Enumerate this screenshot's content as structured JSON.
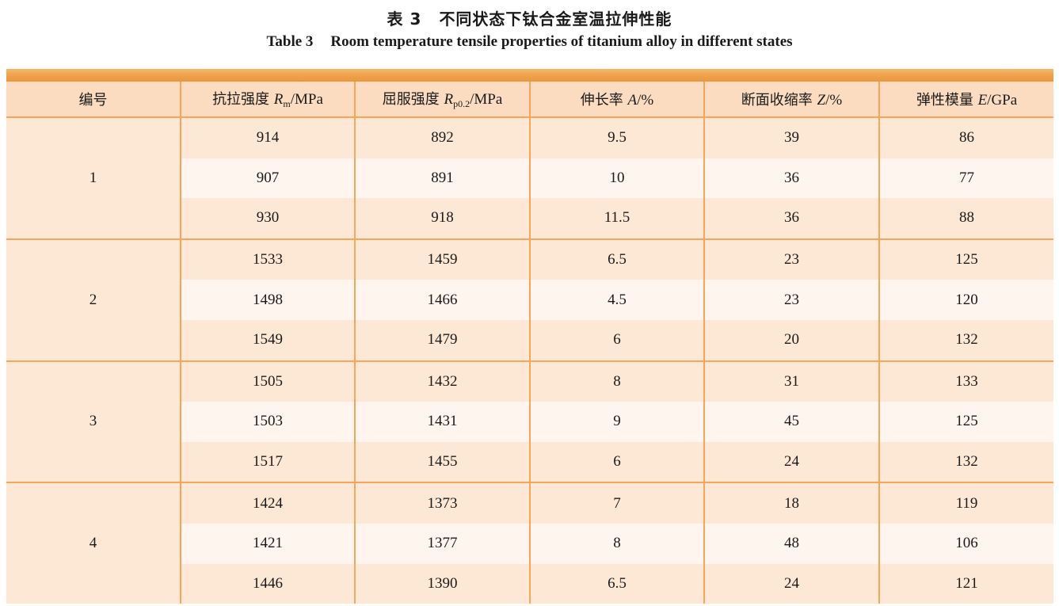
{
  "caption": {
    "cn_number": "表 3",
    "cn_title": "不同状态下钛合金室温拉伸性能",
    "en_number": "Table 3",
    "en_title": "Room temperature tensile properties of titanium alloy in different states"
  },
  "headers": {
    "id": "编号",
    "rm_cn": "抗拉强度 ",
    "rm_var": "R",
    "rm_sub": "m",
    "rm_unit": "/MPa",
    "rp_cn": "屈服强度 ",
    "rp_var": "R",
    "rp_sub": "p0.2",
    "rp_unit": "/MPa",
    "a_cn": "伸长率 ",
    "a_var": "A",
    "a_unit": "/%",
    "z_cn": "断面收缩率 ",
    "z_var": "Z",
    "z_unit": "/%",
    "e_cn": "弹性模量 ",
    "e_var": "E",
    "e_unit": "/GPa"
  },
  "groups": [
    {
      "id": "1",
      "rows": [
        [
          "914",
          "892",
          "9.5",
          "39",
          "86"
        ],
        [
          "907",
          "891",
          "10",
          "36",
          "77"
        ],
        [
          "930",
          "918",
          "11.5",
          "36",
          "88"
        ]
      ]
    },
    {
      "id": "2",
      "rows": [
        [
          "1533",
          "1459",
          "6.5",
          "23",
          "125"
        ],
        [
          "1498",
          "1466",
          "4.5",
          "23",
          "120"
        ],
        [
          "1549",
          "1479",
          "6",
          "20",
          "132"
        ]
      ]
    },
    {
      "id": "3",
      "rows": [
        [
          "1505",
          "1432",
          "8",
          "31",
          "133"
        ],
        [
          "1503",
          "1431",
          "9",
          "45",
          "125"
        ],
        [
          "1517",
          "1455",
          "6",
          "24",
          "132"
        ]
      ]
    },
    {
      "id": "4",
      "rows": [
        [
          "1424",
          "1373",
          "7",
          "18",
          "119"
        ],
        [
          "1421",
          "1377",
          "8",
          "48",
          "106"
        ],
        [
          "1446",
          "1390",
          "6.5",
          "24",
          "121"
        ]
      ]
    }
  ],
  "colors": {
    "header_band": "#f0a34d",
    "header_bg": "#fbdcc0",
    "row_dark": "#fde8d6",
    "row_light": "#fef6ee",
    "rule": "#f5a65a"
  }
}
